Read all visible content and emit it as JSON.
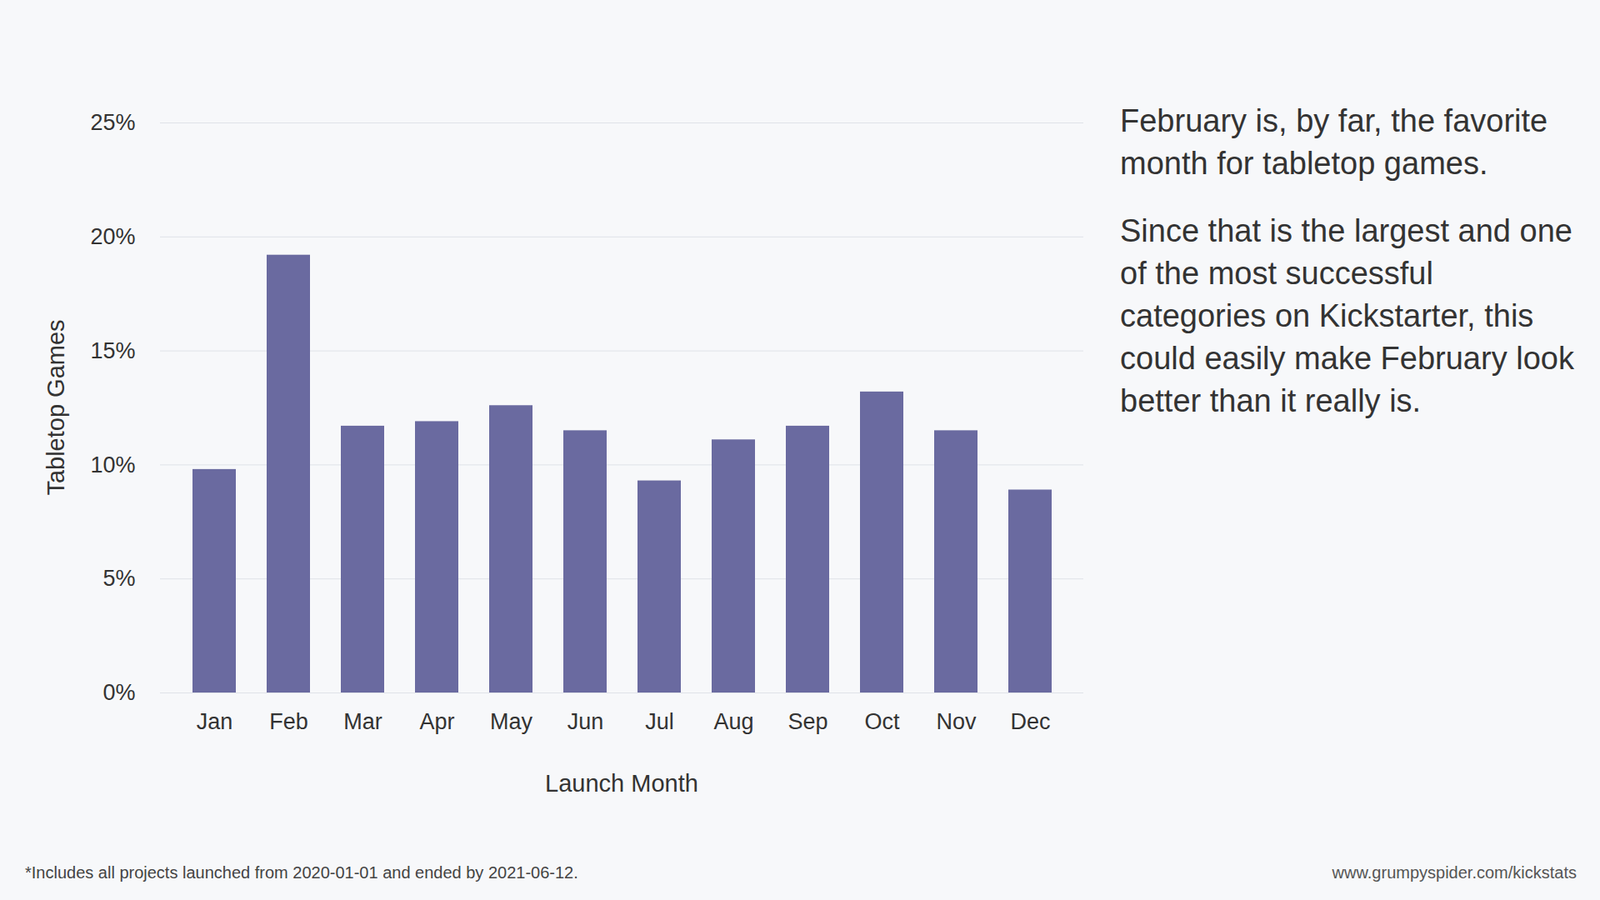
{
  "chart_data": {
    "type": "bar",
    "categories": [
      "Jan",
      "Feb",
      "Mar",
      "Apr",
      "May",
      "Jun",
      "Jul",
      "Aug",
      "Sep",
      "Oct",
      "Nov",
      "Dec"
    ],
    "values": [
      9.8,
      19.2,
      11.7,
      11.9,
      12.6,
      11.5,
      9.3,
      11.1,
      11.7,
      13.2,
      11.5,
      8.9
    ],
    "color": "#6a6aa0",
    "ylim": [
      0,
      25
    ],
    "yticks": [
      {
        "value": 0,
        "label": "0%"
      },
      {
        "value": 5,
        "label": "5%"
      },
      {
        "value": 10,
        "label": "10%"
      },
      {
        "value": 15,
        "label": "15%"
      },
      {
        "value": 20,
        "label": "20%"
      },
      {
        "value": 25,
        "label": "25%"
      }
    ],
    "grid": true,
    "y_label": "Tabletop Games",
    "x_label": "Launch Month",
    "annotations": [
      "February is, by far, the favorite month for tabletop games.",
      "Since that is the largest and one of the most successful categories on Kickstarter, this could easily make February look better than it really is."
    ],
    "footnote": "*Includes all projects launched from 2020-01-01 and ended by 2021-06-12.",
    "source": "www.grumpyspider.com/kickstats"
  }
}
